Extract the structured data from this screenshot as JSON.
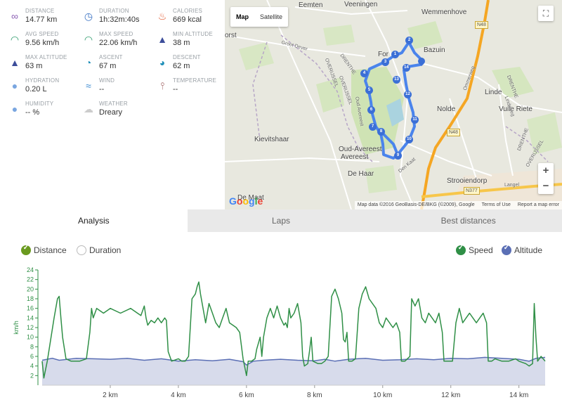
{
  "stats": [
    {
      "name": "distance",
      "label": "DISTANCE",
      "value": "14.77 km",
      "icon": "route-icon",
      "glyph": "∞",
      "color": "#8a5db3"
    },
    {
      "name": "duration",
      "label": "DURATION",
      "value": "1h:32m:40s",
      "icon": "stopwatch-icon",
      "glyph": "◷",
      "color": "#3b73c4"
    },
    {
      "name": "calories",
      "label": "CALORIES",
      "value": "669 kcal",
      "icon": "flame-icon",
      "glyph": "♨",
      "color": "#e2552b"
    },
    {
      "name": "avg-speed",
      "label": "AVG SPEED",
      "value": "9.56 km/h",
      "icon": "speedometer-icon",
      "glyph": "◠",
      "color": "#2a9a6a"
    },
    {
      "name": "max-speed",
      "label": "MAX SPEED",
      "value": "22.06 km/h",
      "icon": "speedometer-max-icon",
      "glyph": "◠",
      "color": "#2a9a6a"
    },
    {
      "name": "min-altitude",
      "label": "MIN ALTITUDE",
      "value": "38 m",
      "icon": "mountain-low-icon",
      "glyph": "▲",
      "color": "#3c4d9a"
    },
    {
      "name": "max-altitude",
      "label": "MAX ALTITUDE",
      "value": "63 m",
      "icon": "mountain-high-icon",
      "glyph": "▲",
      "color": "#3c4d9a"
    },
    {
      "name": "ascent",
      "label": "ASCENT",
      "value": "67 m",
      "icon": "ascent-icon",
      "glyph": "◔",
      "color": "#1f8fb8"
    },
    {
      "name": "descent",
      "label": "DESCENT",
      "value": "62 m",
      "icon": "descent-icon",
      "glyph": "◕",
      "color": "#1f8fb8"
    },
    {
      "name": "hydration",
      "label": "HYDRATION",
      "value": "0.20 L",
      "icon": "water-drops-icon",
      "glyph": "●",
      "color": "#7aa6e0"
    },
    {
      "name": "wind",
      "label": "WIND",
      "value": "--",
      "icon": "wind-icon",
      "glyph": "≈",
      "color": "#3b8ad1"
    },
    {
      "name": "temperature",
      "label": "TEMPERATURE",
      "value": "--",
      "icon": "thermometer-icon",
      "glyph": "⫯",
      "color": "#9b5a5a"
    },
    {
      "name": "humidity",
      "label": "HUMIDITY",
      "value": "-- %",
      "icon": "humidity-icon",
      "glyph": "●",
      "color": "#7aa6e0"
    },
    {
      "name": "weather",
      "label": "WEATHER",
      "value": "Dreary",
      "icon": "cloud-icon",
      "glyph": "☁",
      "color": "#cccccc"
    }
  ],
  "map": {
    "toggle": {
      "map": "Map",
      "satellite": "Satellite"
    },
    "labels": [
      {
        "name": "label-veeningen",
        "text": "Veeningen",
        "cls": ""
      },
      {
        "name": "label-wemmenhove",
        "text": "Wemmenhove",
        "cls": ""
      },
      {
        "name": "label-bazuin",
        "text": "Bazuin",
        "cls": ""
      },
      {
        "name": "label-linde",
        "text": "Linde",
        "cls": ""
      },
      {
        "name": "label-nolde",
        "text": "Nolde",
        "cls": ""
      },
      {
        "name": "label-vuile-riete",
        "text": "Vuile Riete",
        "cls": ""
      },
      {
        "name": "label-kievitshaar",
        "text": "Kievitshaar",
        "cls": ""
      },
      {
        "name": "label-oud-avereest",
        "text": "Oud-Avereest",
        "cls": ""
      },
      {
        "name": "label-avereest",
        "text": "Avereest",
        "cls": ""
      },
      {
        "name": "label-de-haar",
        "text": "De Haar",
        "cls": ""
      },
      {
        "name": "label-strooiendorp",
        "text": "Strooiendorp",
        "cls": ""
      },
      {
        "name": "label-de-maat",
        "text": "De Maat",
        "cls": ""
      },
      {
        "name": "label-forst",
        "text": "orst",
        "cls": ""
      },
      {
        "name": "label-fort",
        "text": "For",
        "cls": ""
      },
      {
        "name": "label-drenthe-1",
        "text": "DRENTHE",
        "cls": "small"
      },
      {
        "name": "label-overijssel-1",
        "text": "OVERIJSSEL",
        "cls": "small"
      },
      {
        "name": "label-drenthe-2",
        "text": "DRENTHE",
        "cls": "small"
      },
      {
        "name": "label-overijssel-2",
        "text": "OVERIJSSEL",
        "cls": "small"
      },
      {
        "name": "label-drenthe-3",
        "text": "DRENTHE",
        "cls": "small"
      },
      {
        "name": "label-overijssel-3",
        "text": "OVERIJSSEL",
        "cls": "small"
      },
      {
        "name": "label-groot-dever",
        "text": "Groot Dever",
        "cls": "small"
      },
      {
        "name": "label-oud-avereest-road",
        "text": "Oud Avereest",
        "cls": "small"
      },
      {
        "name": "label-den-kaat",
        "text": "Den Kaat",
        "cls": "small"
      },
      {
        "name": "label-ommerweg",
        "text": "Ommerweg",
        "cls": "small"
      },
      {
        "name": "label-lindeweg",
        "text": "Lindeweg",
        "cls": "small"
      },
      {
        "name": "label-eemten",
        "text": "Eemten",
        "cls": ""
      },
      {
        "name": "label-langel",
        "text": "Langel",
        "cls": "small"
      }
    ],
    "shields": [
      "N48",
      "N48",
      "N377"
    ],
    "markers": [
      "1",
      "2",
      "3",
      "4",
      "5",
      "6",
      "7",
      "8",
      "9",
      "10",
      "11",
      "12",
      "13",
      "14"
    ],
    "attribution": [
      "Map data ©2016 GeoBasis-DE/BKG (©2009), Google",
      "Terms of Use",
      "Report a map error"
    ],
    "logo": [
      "G",
      "o",
      "o",
      "g",
      "l",
      "e"
    ],
    "zoom_in": "+",
    "zoom_out": "−"
  },
  "tabs": [
    {
      "name": "tab-analysis",
      "label": "Analysis",
      "active": true
    },
    {
      "name": "tab-laps",
      "label": "Laps",
      "active": false
    },
    {
      "name": "tab-best-distances",
      "label": "Best distances",
      "active": false
    }
  ],
  "toggles": {
    "distance": "Distance",
    "duration": "Duration",
    "speed": "Speed",
    "altitude": "Altitude"
  },
  "chart_data": {
    "type": "line",
    "ylabel": "km/h",
    "ylim": [
      0,
      24
    ],
    "yticks": [
      2,
      4,
      6,
      8,
      10,
      12,
      14,
      16,
      18,
      20,
      22,
      24
    ],
    "xlim": [
      0,
      14.77
    ],
    "xticks": [
      2,
      4,
      6,
      8,
      10,
      12,
      14
    ],
    "xtick_suffix": " km",
    "series": [
      {
        "name": "Speed",
        "color": "#2f8f46",
        "points": [
          [
            0,
            5
          ],
          [
            0.05,
            1.5
          ],
          [
            0.15,
            5
          ],
          [
            0.35,
            14
          ],
          [
            0.45,
            18
          ],
          [
            0.5,
            18.5
          ],
          [
            0.55,
            14
          ],
          [
            0.6,
            10
          ],
          [
            0.7,
            5.5
          ],
          [
            0.85,
            5
          ],
          [
            1.1,
            5
          ],
          [
            1.3,
            5.5
          ],
          [
            1.4,
            11
          ],
          [
            1.45,
            16
          ],
          [
            1.5,
            14
          ],
          [
            1.6,
            16
          ],
          [
            1.8,
            15
          ],
          [
            2.0,
            16
          ],
          [
            2.3,
            15
          ],
          [
            2.6,
            16
          ],
          [
            2.8,
            15
          ],
          [
            2.9,
            14.5
          ],
          [
            3.0,
            16.5
          ],
          [
            3.05,
            14
          ],
          [
            3.1,
            12.5
          ],
          [
            3.2,
            13.5
          ],
          [
            3.3,
            13
          ],
          [
            3.4,
            14
          ],
          [
            3.5,
            13
          ],
          [
            3.6,
            14
          ],
          [
            3.65,
            13.5
          ],
          [
            3.7,
            7
          ],
          [
            3.8,
            5
          ],
          [
            4.0,
            5.5
          ],
          [
            4.1,
            5
          ],
          [
            4.2,
            5
          ],
          [
            4.3,
            6
          ],
          [
            4.4,
            18
          ],
          [
            4.5,
            19
          ],
          [
            4.55,
            20.5
          ],
          [
            4.6,
            21.5
          ],
          [
            4.65,
            19
          ],
          [
            4.7,
            17
          ],
          [
            4.8,
            13
          ],
          [
            4.9,
            17
          ],
          [
            5.0,
            15
          ],
          [
            5.1,
            13
          ],
          [
            5.2,
            12
          ],
          [
            5.3,
            14
          ],
          [
            5.4,
            16
          ],
          [
            5.5,
            13
          ],
          [
            5.6,
            12.5
          ],
          [
            5.7,
            12
          ],
          [
            5.8,
            11
          ],
          [
            5.9,
            5.5
          ],
          [
            6.0,
            2
          ],
          [
            6.05,
            5
          ],
          [
            6.15,
            5
          ],
          [
            6.25,
            5.5
          ],
          [
            6.3,
            7.5
          ],
          [
            6.4,
            10
          ],
          [
            6.45,
            6
          ],
          [
            6.5,
            10
          ],
          [
            6.6,
            14
          ],
          [
            6.7,
            16
          ],
          [
            6.8,
            14
          ],
          [
            6.9,
            16.5
          ],
          [
            7.0,
            14
          ],
          [
            7.1,
            12.5
          ],
          [
            7.15,
            13
          ],
          [
            7.2,
            12
          ],
          [
            7.25,
            16
          ],
          [
            7.3,
            14
          ],
          [
            7.4,
            15
          ],
          [
            7.5,
            17
          ],
          [
            7.6,
            13
          ],
          [
            7.65,
            6
          ],
          [
            7.7,
            4
          ],
          [
            7.8,
            4.5
          ],
          [
            7.85,
            7
          ],
          [
            7.9,
            10
          ],
          [
            7.95,
            5
          ],
          [
            8.1,
            4.5
          ],
          [
            8.2,
            4.5
          ],
          [
            8.3,
            5
          ],
          [
            8.4,
            6
          ],
          [
            8.5,
            18.5
          ],
          [
            8.6,
            20
          ],
          [
            8.7,
            18
          ],
          [
            8.8,
            15
          ],
          [
            8.85,
            9.5
          ],
          [
            8.9,
            9
          ],
          [
            8.95,
            11
          ],
          [
            9.0,
            5
          ],
          [
            9.1,
            5
          ],
          [
            9.2,
            5.5
          ],
          [
            9.3,
            16
          ],
          [
            9.4,
            19
          ],
          [
            9.5,
            20.5
          ],
          [
            9.6,
            18
          ],
          [
            9.7,
            17
          ],
          [
            9.8,
            16
          ],
          [
            9.9,
            13
          ],
          [
            10.0,
            12
          ],
          [
            10.1,
            14
          ],
          [
            10.2,
            13
          ],
          [
            10.3,
            12
          ],
          [
            10.4,
            13
          ],
          [
            10.5,
            11
          ],
          [
            10.55,
            5
          ],
          [
            10.65,
            5
          ],
          [
            10.8,
            6
          ],
          [
            10.85,
            18
          ],
          [
            10.95,
            16.5
          ],
          [
            11.05,
            18
          ],
          [
            11.15,
            14
          ],
          [
            11.25,
            13
          ],
          [
            11.35,
            15
          ],
          [
            11.45,
            14
          ],
          [
            11.55,
            13
          ],
          [
            11.65,
            15
          ],
          [
            11.75,
            11
          ],
          [
            11.8,
            5
          ],
          [
            11.9,
            5
          ],
          [
            12.05,
            5
          ],
          [
            12.15,
            13
          ],
          [
            12.25,
            16
          ],
          [
            12.35,
            13
          ],
          [
            12.45,
            14
          ],
          [
            12.55,
            15
          ],
          [
            12.65,
            14
          ],
          [
            12.75,
            13
          ],
          [
            12.85,
            14
          ],
          [
            12.95,
            15
          ],
          [
            13.05,
            13
          ],
          [
            13.1,
            5
          ],
          [
            13.2,
            5
          ],
          [
            13.3,
            5.5
          ],
          [
            13.5,
            5
          ],
          [
            13.7,
            5
          ],
          [
            13.9,
            5.5
          ],
          [
            14.0,
            5
          ],
          [
            14.2,
            4.5
          ],
          [
            14.3,
            4
          ],
          [
            14.4,
            4.5
          ],
          [
            14.45,
            17
          ],
          [
            14.5,
            10
          ],
          [
            14.55,
            5
          ],
          [
            14.65,
            6
          ],
          [
            14.77,
            5
          ]
        ]
      },
      {
        "name": "Altitude",
        "color": "#5b6fb5",
        "points": [
          [
            0,
            5.2
          ],
          [
            0.3,
            5.6
          ],
          [
            0.5,
            5.2
          ],
          [
            1,
            5.6
          ],
          [
            1.5,
            5.5
          ],
          [
            2,
            5.4
          ],
          [
            2.5,
            5.6
          ],
          [
            3,
            5.2
          ],
          [
            3.5,
            5.5
          ],
          [
            4,
            5.0
          ],
          [
            4.5,
            5.3
          ],
          [
            5,
            5.1
          ],
          [
            5.5,
            5.4
          ],
          [
            5.9,
            4.9
          ],
          [
            6,
            4.2
          ],
          [
            6.2,
            5.0
          ],
          [
            6.5,
            5.2
          ],
          [
            7,
            5.4
          ],
          [
            7.5,
            5.2
          ],
          [
            8,
            5.1
          ],
          [
            8.3,
            5.4
          ],
          [
            8.6,
            5.0
          ],
          [
            9,
            5.4
          ],
          [
            9.5,
            5.6
          ],
          [
            10,
            5.2
          ],
          [
            10.5,
            5.3
          ],
          [
            11,
            5.5
          ],
          [
            11.5,
            5.3
          ],
          [
            12,
            5.6
          ],
          [
            12.5,
            5.5
          ],
          [
            13,
            5.8
          ],
          [
            13.5,
            5.6
          ],
          [
            14,
            5.4
          ],
          [
            14.3,
            5.0
          ],
          [
            14.5,
            5.6
          ],
          [
            14.77,
            5.8
          ]
        ]
      }
    ]
  }
}
